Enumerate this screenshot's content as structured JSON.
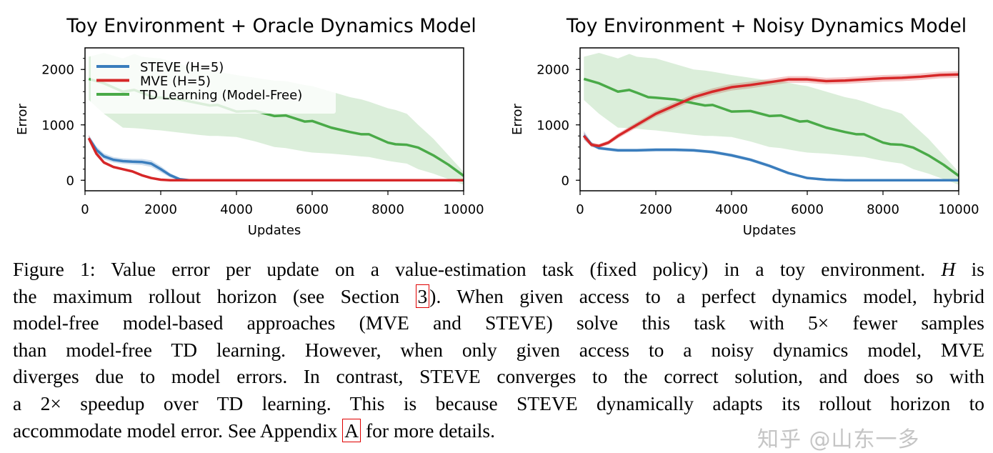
{
  "figure": {
    "caption_lines": [
      {
        "pre": "Figure 1: Value error per update on a value-estimation task (fixed policy) in a toy environment. ",
        "italic": "H",
        "post": " is"
      },
      {
        "pre": "the maximum rollout horizon (see Section ",
        "ref": "3",
        "post": "). When given access to a perfect dynamics model, hybrid"
      },
      {
        "pre": "model-free model-based approaches (MVE and STEVE) solve this task with 5× fewer samples"
      },
      {
        "pre": "than model-free TD learning. However, when only given access to a noisy dynamics model, MVE"
      },
      {
        "pre": "diverges due to model errors. In contrast, STEVE converges to the correct solution, and does so with"
      },
      {
        "pre": "a 2× speedup over TD learning. This is because STEVE dynamically adapts its rollout horizon to"
      },
      {
        "pre": "accommodate model error. See Appendix ",
        "ref": "A",
        "post": " for more details."
      }
    ],
    "ref_box_color": "#e00000",
    "watermark": "知乎 @山东一多"
  },
  "colors": {
    "steve": "#3a7dbd",
    "mve": "#d62728",
    "td": "#4aaa48"
  },
  "chart_data": [
    {
      "type": "line",
      "title": "Toy Environment + Oracle Dynamics Model",
      "xlabel": "Updates",
      "ylabel": "Error",
      "xlim": [
        0,
        10000
      ],
      "ylim": [
        -190,
        2390
      ],
      "xticks": [
        0,
        2000,
        4000,
        6000,
        8000,
        10000
      ],
      "yticks": [
        0,
        1000,
        2000
      ],
      "legend": "top-left",
      "grid": false,
      "series": [
        {
          "name": "STEVE (H=5)",
          "key": "steve",
          "x": [
            100,
            300,
            500,
            750,
            1000,
            1250,
            1500,
            1750,
            2000,
            2250,
            2500,
            2750,
            4000,
            6000,
            8000,
            10000
          ],
          "y": [
            760,
            550,
            430,
            370,
            345,
            335,
            330,
            300,
            200,
            90,
            20,
            0,
            0,
            0,
            0,
            0
          ],
          "band": [
            60,
            60,
            55,
            50,
            50,
            50,
            55,
            60,
            55,
            40,
            20,
            5,
            3,
            3,
            3,
            3
          ]
        },
        {
          "name": "MVE (H=5)",
          "key": "mve",
          "x": [
            100,
            300,
            500,
            750,
            1000,
            1250,
            1500,
            1750,
            2000,
            2250,
            2500,
            4000,
            6000,
            8000,
            10000
          ],
          "y": [
            760,
            480,
            320,
            240,
            200,
            160,
            90,
            40,
            10,
            0,
            0,
            0,
            0,
            0,
            0
          ],
          "band": [
            60,
            40,
            30,
            25,
            20,
            15,
            10,
            8,
            5,
            3,
            3,
            3,
            3,
            3,
            3
          ]
        },
        {
          "name": "TD Learning (Model-Free)",
          "key": "td",
          "x": [
            100,
            500,
            1000,
            1300,
            1500,
            1800,
            2000,
            2500,
            3000,
            3300,
            3500,
            4000,
            4500,
            5000,
            5300,
            5800,
            6000,
            6500,
            7000,
            7300,
            7500,
            8000,
            8200,
            8500,
            8800,
            9200,
            9600,
            10000
          ],
          "y": [
            1830,
            1750,
            1600,
            1630,
            1580,
            1500,
            1490,
            1460,
            1390,
            1350,
            1360,
            1240,
            1250,
            1160,
            1170,
            1060,
            1070,
            950,
            870,
            830,
            830,
            680,
            650,
            640,
            590,
            450,
            280,
            80
          ],
          "lower": [
            1450,
            1200,
            950,
            940,
            930,
            910,
            900,
            860,
            820,
            800,
            800,
            780,
            700,
            600,
            580,
            520,
            500,
            480,
            450,
            430,
            420,
            350,
            330,
            300,
            200,
            120,
            20,
            -80
          ],
          "upper": [
            2230,
            2300,
            2200,
            2280,
            2230,
            2210,
            2200,
            2100,
            2000,
            1980,
            1960,
            1900,
            1850,
            1800,
            1790,
            1720,
            1700,
            1600,
            1500,
            1460,
            1420,
            1300,
            1270,
            1200,
            1000,
            750,
            450,
            150
          ]
        }
      ]
    },
    {
      "type": "line",
      "title": "Toy Environment + Noisy Dynamics Model",
      "xlabel": "Updates",
      "ylabel": "Error",
      "xlim": [
        0,
        10000
      ],
      "ylim": [
        -190,
        2390
      ],
      "xticks": [
        0,
        2000,
        4000,
        6000,
        8000,
        10000
      ],
      "yticks": [
        0,
        1000,
        2000
      ],
      "grid": false,
      "series": [
        {
          "key": "steve",
          "x": [
            100,
            300,
            500,
            1000,
            1500,
            2000,
            2500,
            3000,
            3500,
            4000,
            4500,
            5000,
            5500,
            6000,
            6500,
            7000,
            8000,
            9000,
            10000
          ],
          "y": [
            810,
            650,
            580,
            540,
            540,
            550,
            550,
            540,
            510,
            450,
            370,
            260,
            130,
            40,
            10,
            0,
            0,
            0,
            0
          ],
          "band": [
            80,
            40,
            30,
            30,
            30,
            30,
            30,
            30,
            30,
            30,
            30,
            30,
            25,
            15,
            8,
            5,
            5,
            5,
            5
          ]
        },
        {
          "key": "mve",
          "x": [
            100,
            300,
            500,
            750,
            1000,
            1500,
            2000,
            2500,
            3000,
            3500,
            4000,
            4500,
            5000,
            5500,
            6000,
            6500,
            7000,
            7500,
            8000,
            8500,
            9000,
            9500,
            10000
          ],
          "y": [
            800,
            640,
            620,
            680,
            800,
            1000,
            1200,
            1350,
            1500,
            1600,
            1680,
            1720,
            1770,
            1820,
            1820,
            1790,
            1800,
            1820,
            1840,
            1850,
            1870,
            1900,
            1910
          ],
          "band": [
            60,
            40,
            35,
            40,
            45,
            50,
            55,
            60,
            60,
            60,
            60,
            60,
            60,
            60,
            60,
            60,
            60,
            60,
            60,
            60,
            60,
            60,
            60
          ]
        },
        {
          "key": "td",
          "x": [
            100,
            500,
            1000,
            1300,
            1500,
            1800,
            2000,
            2500,
            3000,
            3300,
            3500,
            4000,
            4500,
            5000,
            5300,
            5800,
            6000,
            6500,
            7000,
            7300,
            7500,
            8000,
            8200,
            8500,
            8800,
            9200,
            9600,
            10000
          ],
          "y": [
            1830,
            1750,
            1600,
            1630,
            1580,
            1500,
            1490,
            1460,
            1390,
            1350,
            1360,
            1240,
            1250,
            1160,
            1170,
            1060,
            1070,
            950,
            870,
            830,
            830,
            680,
            650,
            640,
            590,
            450,
            280,
            80
          ],
          "lower": [
            1450,
            1200,
            950,
            940,
            930,
            910,
            900,
            860,
            820,
            800,
            800,
            780,
            700,
            600,
            580,
            520,
            500,
            480,
            450,
            430,
            420,
            350,
            330,
            300,
            200,
            120,
            20,
            -80
          ],
          "upper": [
            2230,
            2300,
            2200,
            2280,
            2230,
            2210,
            2200,
            2100,
            2000,
            1980,
            1960,
            1900,
            1850,
            1800,
            1790,
            1720,
            1700,
            1600,
            1500,
            1460,
            1420,
            1300,
            1270,
            1200,
            1000,
            750,
            450,
            150
          ]
        }
      ]
    }
  ]
}
